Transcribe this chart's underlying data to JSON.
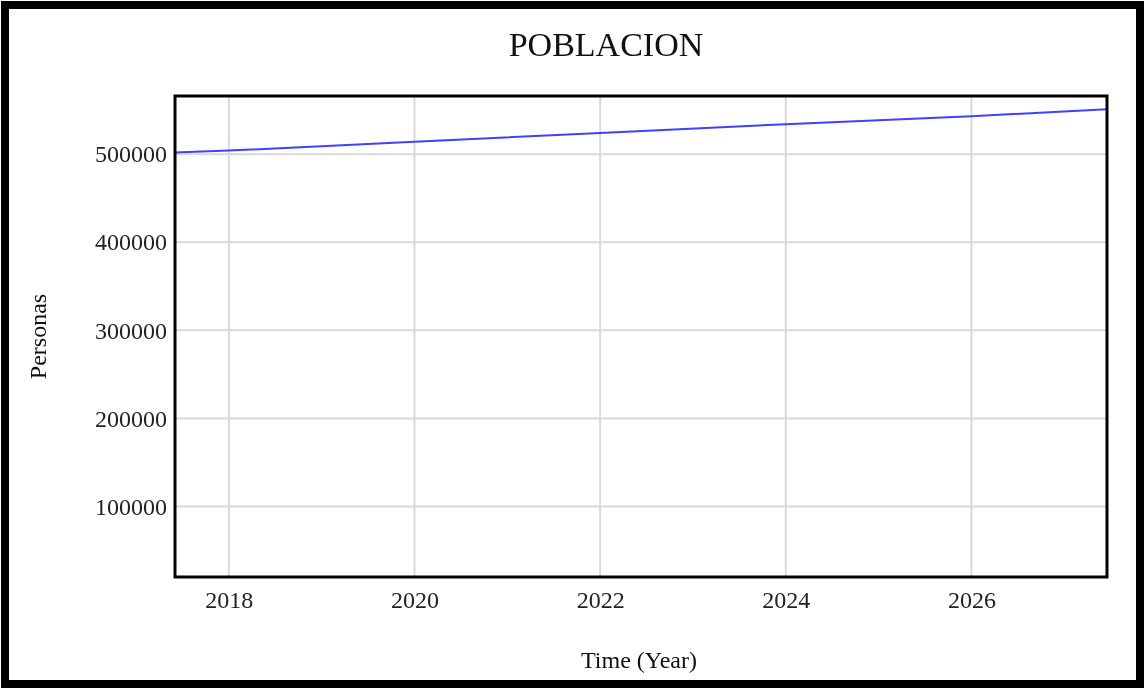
{
  "chart_data": {
    "type": "line",
    "title": "POBLACION",
    "xlabel": "Time (Year)",
    "ylabel": "Personas",
    "x": [
      2017.42,
      2018,
      2020,
      2022,
      2024,
      2026,
      2027.46
    ],
    "series": [
      {
        "color": "#4040ff",
        "values": [
          502000,
          504000,
          514000,
          524000,
          534000,
          543000,
          551000
        ]
      }
    ],
    "xlim": [
      2017.42,
      2027.46
    ],
    "xticks": [
      2018,
      2020,
      2022,
      2024,
      2026
    ],
    "ylim": [
      20000,
      566000
    ],
    "yticks": [
      100000,
      200000,
      300000,
      400000,
      500000
    ],
    "grid": true,
    "marker": "none",
    "line_style": "solid"
  }
}
